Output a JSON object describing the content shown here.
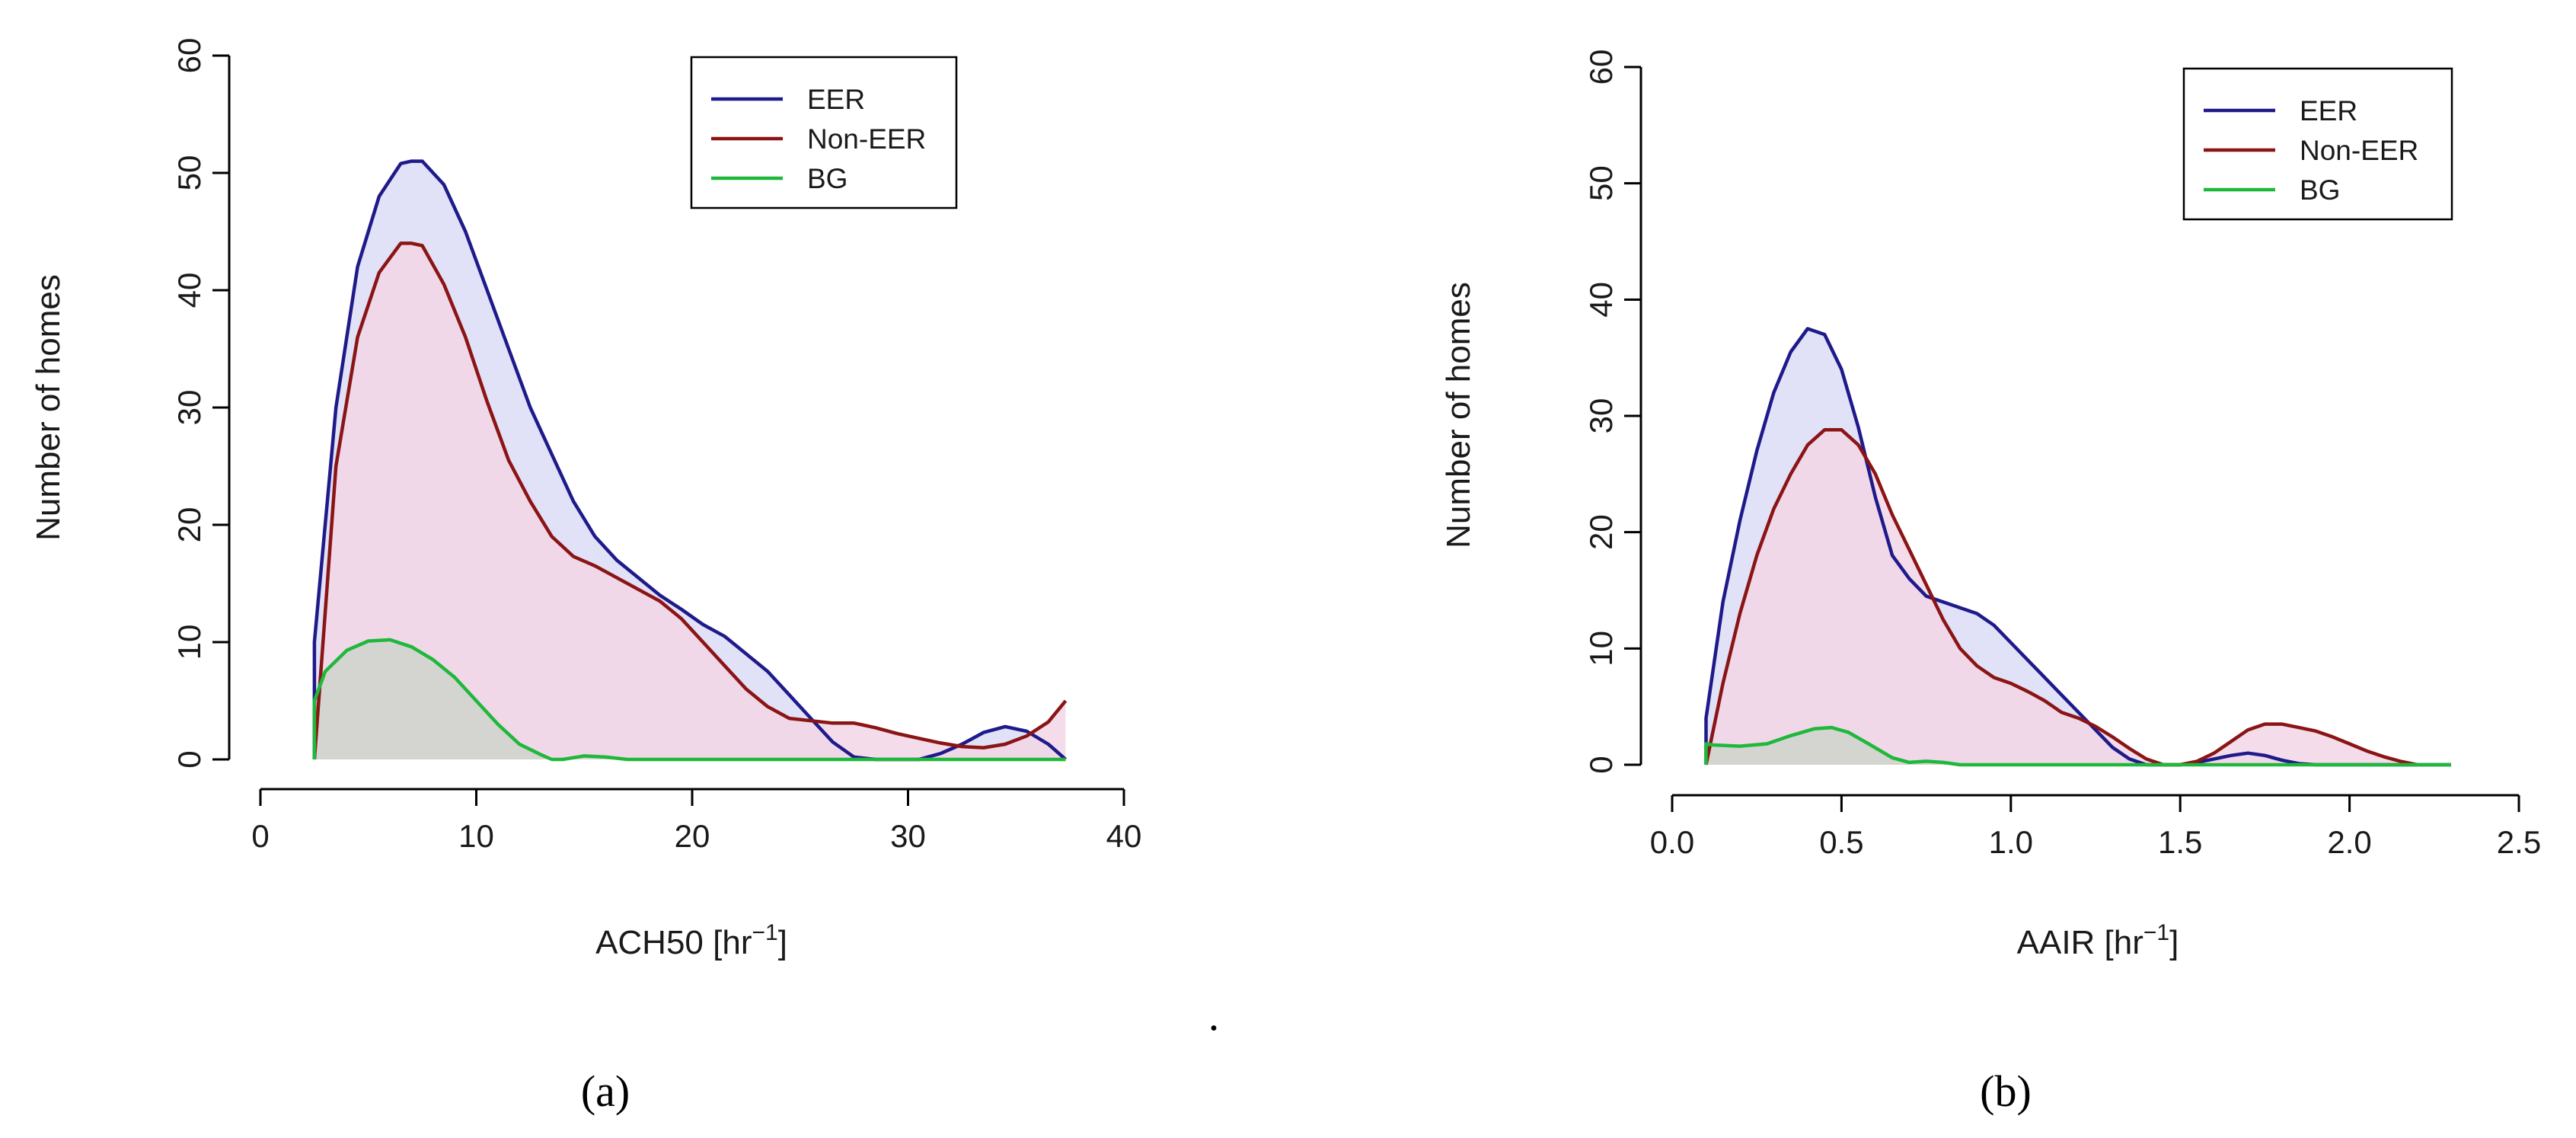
{
  "figure": {
    "separator": "."
  },
  "chart_data": [
    {
      "type": "area",
      "caption": "(a)",
      "xlabel_base": "ACH50 [hr",
      "xlabel_exp": "−1",
      "xlabel_tail": "]",
      "ylabel": "Number of homes",
      "xlim": [
        0,
        40
      ],
      "ylim": [
        0,
        60
      ],
      "xticks": [
        0,
        10,
        20,
        30,
        40
      ],
      "yticks": [
        0,
        10,
        20,
        30,
        40,
        50,
        60
      ],
      "xtick_labels": [
        "0",
        "10",
        "20",
        "30",
        "40"
      ],
      "ytick_labels": [
        "0",
        "10",
        "20",
        "30",
        "40",
        "50",
        "60"
      ],
      "legend": {
        "position": "top-right"
      },
      "series": [
        {
          "name": "EER",
          "color": "#1f1a8a",
          "fill": "#dcdcf7",
          "x": [
            2.5,
            3.5,
            4.5,
            5.5,
            6.5,
            7.0,
            7.5,
            8.5,
            9.5,
            10.5,
            11.5,
            12.5,
            13.5,
            14.5,
            15.5,
            16.5,
            17.5,
            18.5,
            19.5,
            20.5,
            21.5,
            22.5,
            23.5,
            24.5,
            25.5,
            26.5,
            27.5,
            28.5,
            29.5,
            30.5,
            31.5,
            32.5,
            33.5,
            34.5,
            35.5,
            36.5,
            37.3
          ],
          "y": [
            10,
            30,
            42,
            48,
            50.8,
            51,
            51,
            49,
            45,
            40,
            35,
            30,
            26,
            22,
            19,
            17,
            15.5,
            14,
            12.8,
            11.5,
            10.5,
            9,
            7.5,
            5.5,
            3.5,
            1.5,
            0.2,
            0,
            0,
            0,
            0.5,
            1.3,
            2.3,
            2.8,
            2.4,
            1.3,
            0
          ]
        },
        {
          "name": "Non-EER",
          "color": "#8b1414",
          "fill": "#f2d6e6",
          "x": [
            2.5,
            3.5,
            4.5,
            5.5,
            6.5,
            7.0,
            7.5,
            8.5,
            9.5,
            10.5,
            11.5,
            12.5,
            13.5,
            14.5,
            15.5,
            16.5,
            17.5,
            18.5,
            19.5,
            20.5,
            21.5,
            22.5,
            23.5,
            24.5,
            25.5,
            26.5,
            27.5,
            28.5,
            29.5,
            30.5,
            31.5,
            32.5,
            33.5,
            34.5,
            35.5,
            36.5,
            37.3
          ],
          "y": [
            0,
            25,
            36,
            41.5,
            44,
            44,
            43.8,
            40.5,
            36,
            30.5,
            25.5,
            22,
            19,
            17.3,
            16.5,
            15.5,
            14.5,
            13.5,
            12,
            10,
            8,
            6,
            4.5,
            3.5,
            3.3,
            3.1,
            3.1,
            2.7,
            2.2,
            1.8,
            1.4,
            1.1,
            1,
            1.3,
            2,
            3.2,
            5
          ]
        },
        {
          "name": "BG",
          "color": "#1fb83a",
          "fill": "#cfd4cd",
          "x": [
            2.5,
            3.0,
            4.0,
            5.0,
            6.0,
            7.0,
            8.0,
            9.0,
            10.0,
            11.0,
            12.0,
            13.0,
            13.5,
            14.0,
            15.0,
            16.0,
            17.0,
            20.0,
            25.0,
            30.0,
            37.3
          ],
          "y": [
            5,
            7.5,
            9.3,
            10.1,
            10.2,
            9.6,
            8.5,
            7,
            5,
            3,
            1.3,
            0.4,
            0,
            0,
            0.3,
            0.2,
            0,
            0,
            0,
            0,
            0
          ]
        }
      ]
    },
    {
      "type": "area",
      "caption": "(b)",
      "xlabel_base": "AAIR [hr",
      "xlabel_exp": "−1",
      "xlabel_tail": "]",
      "ylabel": "Number of homes",
      "xlim": [
        0,
        2.5
      ],
      "ylim": [
        0,
        60
      ],
      "xticks": [
        0,
        0.5,
        1,
        1.5,
        2,
        2.5
      ],
      "yticks": [
        0,
        10,
        20,
        30,
        40,
        50,
        60
      ],
      "xtick_labels": [
        "0.0",
        "0.5",
        "1.0",
        "1.5",
        "2.0",
        "2.5"
      ],
      "ytick_labels": [
        "0",
        "10",
        "20",
        "30",
        "40",
        "50",
        "60"
      ],
      "legend": {
        "position": "top-right"
      },
      "series": [
        {
          "name": "EER",
          "color": "#1f1a8a",
          "fill": "#dcdcf7",
          "x": [
            0.1,
            0.15,
            0.2,
            0.25,
            0.3,
            0.35,
            0.4,
            0.45,
            0.5,
            0.55,
            0.6,
            0.65,
            0.7,
            0.75,
            0.8,
            0.85,
            0.9,
            0.95,
            1.0,
            1.05,
            1.1,
            1.15,
            1.2,
            1.25,
            1.3,
            1.35,
            1.4,
            1.45,
            1.5,
            1.55,
            1.6,
            1.65,
            1.7,
            1.75,
            1.8,
            1.85,
            1.9,
            2.0,
            2.3
          ],
          "y": [
            4,
            14,
            21,
            27,
            32,
            35.5,
            37.5,
            37,
            34,
            29,
            23,
            18,
            16,
            14.5,
            14,
            13.5,
            13,
            12,
            10.5,
            9,
            7.5,
            6,
            4.5,
            3,
            1.5,
            0.5,
            0,
            0,
            0,
            0.2,
            0.5,
            0.8,
            1,
            0.8,
            0.4,
            0.1,
            0,
            0,
            0
          ]
        },
        {
          "name": "Non-EER",
          "color": "#8b1414",
          "fill": "#f2d6e6",
          "x": [
            0.1,
            0.15,
            0.2,
            0.25,
            0.3,
            0.35,
            0.4,
            0.45,
            0.5,
            0.55,
            0.6,
            0.65,
            0.7,
            0.75,
            0.8,
            0.85,
            0.9,
            0.95,
            1.0,
            1.05,
            1.1,
            1.15,
            1.2,
            1.25,
            1.3,
            1.35,
            1.4,
            1.45,
            1.5,
            1.55,
            1.6,
            1.65,
            1.7,
            1.75,
            1.8,
            1.85,
            1.9,
            1.95,
            2.0,
            2.05,
            2.1,
            2.15,
            2.2
          ],
          "y": [
            0,
            7,
            13,
            18,
            22,
            25,
            27.5,
            28.8,
            28.8,
            27.5,
            25,
            21.5,
            18.5,
            15.5,
            12.5,
            10,
            8.5,
            7.5,
            7,
            6.3,
            5.5,
            4.5,
            4,
            3.3,
            2.4,
            1.4,
            0.5,
            0,
            0,
            0.3,
            1,
            2,
            3,
            3.5,
            3.5,
            3.2,
            2.9,
            2.4,
            1.8,
            1.2,
            0.7,
            0.3,
            0
          ]
        },
        {
          "name": "BG",
          "color": "#1fb83a",
          "fill": "#cfd4cd",
          "x": [
            0.1,
            0.12,
            0.2,
            0.28,
            0.35,
            0.42,
            0.47,
            0.52,
            0.58,
            0.65,
            0.7,
            0.75,
            0.8,
            0.85,
            0.9,
            1.0,
            1.5,
            2.0,
            2.3
          ],
          "y": [
            1.8,
            1.7,
            1.6,
            1.8,
            2.5,
            3.1,
            3.2,
            2.8,
            1.8,
            0.6,
            0.2,
            0.3,
            0.2,
            0,
            0,
            0,
            0,
            0,
            0
          ]
        }
      ]
    }
  ]
}
